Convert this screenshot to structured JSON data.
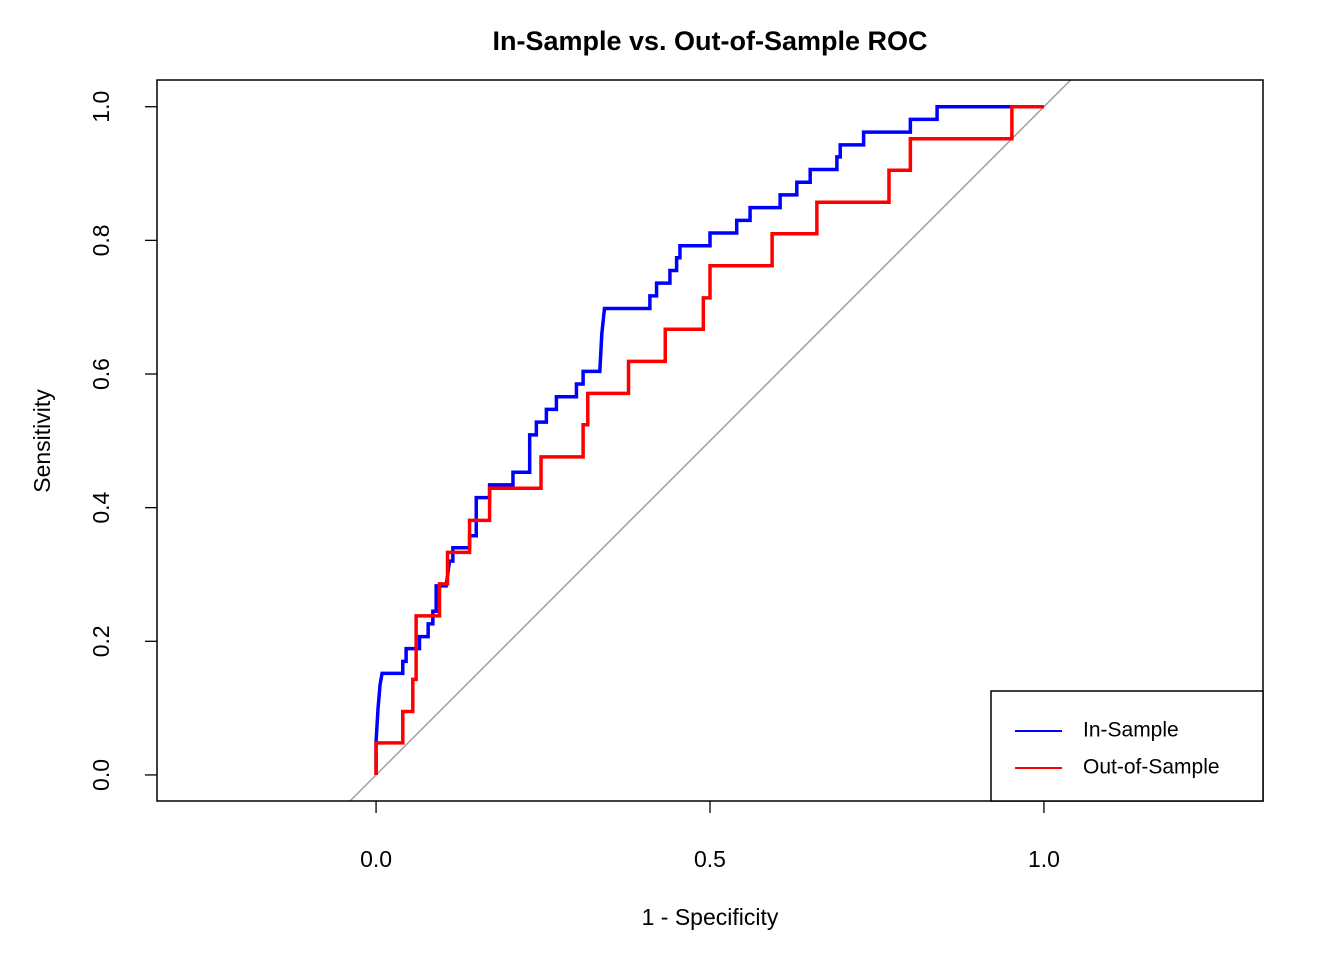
{
  "chart_data": {
    "type": "line",
    "title": "In-Sample vs. Out-of-Sample ROC",
    "x_label": "1 - Specificity",
    "y_label": "Sensitivity",
    "xlim": [
      -0.328,
      1.328
    ],
    "ylim": [
      -0.039,
      1.04
    ],
    "xticks": [
      {
        "value": 0,
        "label": "0.0"
      },
      {
        "value": 0.5,
        "label": "0.5"
      },
      {
        "value": 1,
        "label": "1.0"
      }
    ],
    "yticks": [
      {
        "value": 0,
        "label": "0.0"
      },
      {
        "value": 0.2,
        "label": "0.2"
      },
      {
        "value": 0.4,
        "label": "0.4"
      },
      {
        "value": 0.6,
        "label": "0.6"
      },
      {
        "value": 0.8,
        "label": "0.8"
      },
      {
        "value": 1,
        "label": "1.0"
      }
    ],
    "diagonal": true,
    "diagonal_color": "#a0a0a0",
    "legend": "bottomright",
    "series": [
      {
        "name": "In-Sample",
        "color": "#0000ff",
        "x": [
          0,
          0,
          0.003,
          0.006,
          0.009,
          0.04,
          0.04,
          0.045,
          0.045,
          0.065,
          0.065,
          0.078,
          0.078,
          0.085,
          0.085,
          0.09,
          0.09,
          0.105,
          0.11,
          0.115,
          0.115,
          0.14,
          0.14,
          0.15,
          0.15,
          0.17,
          0.17,
          0.205,
          0.205,
          0.23,
          0.23,
          0.24,
          0.24,
          0.255,
          0.255,
          0.27,
          0.27,
          0.3,
          0.3,
          0.31,
          0.31,
          0.335,
          0.338,
          0.342,
          0.41,
          0.41,
          0.42,
          0.42,
          0.44,
          0.44,
          0.45,
          0.45,
          0.455,
          0.455,
          0.5,
          0.5,
          0.54,
          0.54,
          0.56,
          0.56,
          0.605,
          0.605,
          0.63,
          0.63,
          0.65,
          0.65,
          0.69,
          0.69,
          0.695,
          0.695,
          0.73,
          0.73,
          0.8,
          0.8,
          0.84,
          0.84,
          1.0
        ],
        "values": [
          0,
          0.05,
          0.1,
          0.135,
          0.152,
          0.152,
          0.17,
          0.17,
          0.189,
          0.189,
          0.207,
          0.207,
          0.226,
          0.226,
          0.245,
          0.245,
          0.283,
          0.283,
          0.32,
          0.32,
          0.34,
          0.34,
          0.358,
          0.358,
          0.415,
          0.415,
          0.434,
          0.434,
          0.453,
          0.453,
          0.509,
          0.509,
          0.528,
          0.528,
          0.547,
          0.547,
          0.566,
          0.566,
          0.585,
          0.585,
          0.604,
          0.604,
          0.66,
          0.698,
          0.698,
          0.717,
          0.717,
          0.736,
          0.736,
          0.755,
          0.755,
          0.774,
          0.774,
          0.792,
          0.792,
          0.811,
          0.811,
          0.83,
          0.83,
          0.849,
          0.849,
          0.868,
          0.868,
          0.887,
          0.887,
          0.906,
          0.906,
          0.925,
          0.925,
          0.943,
          0.943,
          0.962,
          0.962,
          0.981,
          0.981,
          1.0,
          1.0
        ]
      },
      {
        "name": "Out-of-Sample",
        "color": "#ff0000",
        "x": [
          0,
          0,
          0.04,
          0.04,
          0.055,
          0.055,
          0.06,
          0.06,
          0.095,
          0.095,
          0.107,
          0.107,
          0.14,
          0.14,
          0.17,
          0.17,
          0.247,
          0.247,
          0.31,
          0.31,
          0.317,
          0.317,
          0.378,
          0.378,
          0.433,
          0.433,
          0.49,
          0.49,
          0.5,
          0.5,
          0.593,
          0.593,
          0.66,
          0.66,
          0.768,
          0.768,
          0.8,
          0.8,
          0.952,
          0.952,
          1.0
        ],
        "values": [
          0,
          0.048,
          0.048,
          0.095,
          0.095,
          0.143,
          0.143,
          0.238,
          0.238,
          0.286,
          0.286,
          0.333,
          0.333,
          0.381,
          0.381,
          0.429,
          0.429,
          0.476,
          0.476,
          0.524,
          0.524,
          0.571,
          0.571,
          0.619,
          0.619,
          0.667,
          0.667,
          0.714,
          0.714,
          0.762,
          0.762,
          0.81,
          0.81,
          0.857,
          0.857,
          0.905,
          0.905,
          0.952,
          0.952,
          1.0,
          1.0
        ]
      }
    ]
  }
}
